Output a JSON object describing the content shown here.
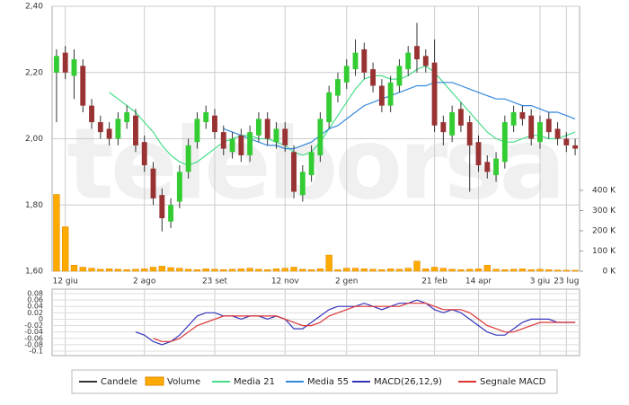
{
  "watermark": "teleborsa",
  "chart_data": [
    {
      "type": "candlestick",
      "name": "Candele",
      "up_color": "#33cc33",
      "down_color": "#993333",
      "wick_color": "#333333",
      "grid": true,
      "categories": [
        null,
        "12 giu",
        null,
        null,
        null,
        null,
        null,
        null,
        null,
        null,
        "2 ago",
        null,
        null,
        null,
        null,
        null,
        null,
        null,
        "23 set",
        null,
        null,
        null,
        null,
        null,
        null,
        null,
        "12 nov",
        null,
        null,
        null,
        null,
        null,
        null,
        "2 gen",
        null,
        null,
        null,
        null,
        null,
        null,
        null,
        null,
        null,
        "21 feb",
        null,
        null,
        null,
        null,
        "14 apr",
        null,
        null,
        null,
        null,
        null,
        null,
        "3 giu",
        null,
        null,
        "23 lug",
        null
      ],
      "open": [
        2.2,
        2.26,
        2.19,
        2.22,
        2.1,
        2.05,
        2.03,
        2.0,
        2.05,
        2.07,
        1.99,
        1.91,
        1.83,
        1.75,
        1.81,
        1.9,
        1.99,
        2.05,
        2.07,
        2.02,
        1.96,
        2.01,
        1.95,
        2.01,
        2.06,
        1.99,
        2.03,
        1.96,
        1.83,
        1.89,
        1.95,
        2.05,
        2.13,
        2.17,
        2.21,
        2.27,
        2.21,
        2.16,
        2.1,
        2.16,
        2.21,
        2.28,
        2.25,
        2.23,
        2.05,
        2.01,
        2.09,
        2.05,
        1.99,
        1.93,
        1.89,
        1.93,
        2.04,
        2.08,
        2.07,
        1.99,
        2.06,
        2.03,
        2.0,
        1.98
      ],
      "high": [
        2.27,
        2.28,
        2.27,
        2.24,
        2.12,
        2.07,
        2.05,
        2.08,
        2.1,
        2.09,
        2.01,
        1.93,
        1.85,
        1.82,
        1.92,
        2.0,
        2.08,
        2.1,
        2.09,
        2.04,
        2.02,
        2.03,
        2.04,
        2.08,
        2.08,
        2.05,
        2.05,
        1.98,
        1.92,
        1.98,
        2.08,
        2.16,
        2.2,
        2.24,
        2.3,
        2.29,
        2.23,
        2.18,
        2.19,
        2.24,
        2.28,
        2.35,
        2.27,
        2.3,
        2.07,
        2.1,
        2.11,
        2.07,
        2.01,
        1.95,
        1.96,
        2.07,
        2.1,
        2.1,
        2.09,
        2.07,
        2.08,
        2.05,
        2.02,
        2.0
      ],
      "low": [
        2.05,
        2.18,
        2.12,
        2.08,
        2.03,
        2.0,
        1.98,
        1.98,
        2.03,
        1.96,
        1.9,
        1.8,
        1.72,
        1.73,
        1.79,
        1.88,
        1.97,
        2.03,
        2.0,
        1.95,
        1.94,
        1.93,
        1.93,
        1.99,
        1.98,
        1.97,
        1.96,
        1.82,
        1.81,
        1.87,
        1.93,
        2.03,
        2.11,
        2.15,
        2.19,
        2.18,
        2.14,
        2.08,
        2.08,
        2.14,
        2.19,
        2.2,
        2.2,
        2.02,
        1.98,
        1.99,
        2.02,
        1.84,
        1.9,
        1.88,
        1.87,
        1.91,
        2.02,
        2.04,
        1.98,
        1.97,
        2.0,
        1.98,
        1.96,
        1.95
      ],
      "close": [
        2.25,
        2.2,
        2.24,
        2.1,
        2.05,
        2.02,
        2.0,
        2.06,
        2.08,
        1.98,
        1.92,
        1.82,
        1.76,
        1.8,
        1.9,
        1.98,
        2.06,
        2.08,
        2.02,
        1.97,
        2.0,
        1.95,
        2.02,
        2.06,
        2.0,
        2.03,
        1.98,
        1.84,
        1.9,
        1.96,
        2.06,
        2.14,
        2.18,
        2.22,
        2.26,
        2.2,
        2.16,
        2.1,
        2.17,
        2.22,
        2.26,
        2.24,
        2.22,
        2.04,
        2.02,
        2.08,
        2.04,
        1.98,
        1.92,
        1.9,
        1.94,
        2.05,
        2.08,
        2.06,
        2.0,
        2.05,
        2.02,
        2.0,
        1.98,
        1.97
      ],
      "ylim": [
        1.6,
        2.4
      ],
      "yticks": [
        {
          "value": 1.6,
          "label": "1,60"
        },
        {
          "value": 1.8,
          "label": "1,80"
        },
        {
          "value": 2.0,
          "label": "2,00"
        },
        {
          "value": 2.2,
          "label": "2,20"
        },
        {
          "value": 2.4,
          "label": "2,40"
        }
      ],
      "volume": {
        "name": "Volume",
        "color": "#ffaa00",
        "axis": "y2",
        "values": [
          380000,
          220000,
          30000,
          20000,
          15000,
          10000,
          12000,
          10000,
          8000,
          10000,
          12000,
          20000,
          25000,
          18000,
          15000,
          10000,
          8000,
          12000,
          10000,
          8000,
          10000,
          12000,
          15000,
          10000,
          8000,
          12000,
          15000,
          20000,
          10000,
          8000,
          12000,
          80000,
          8000,
          15000,
          15000,
          12000,
          10000,
          8000,
          12000,
          10000,
          15000,
          50000,
          12000,
          20000,
          15000,
          10000,
          8000,
          10000,
          12000,
          30000,
          10000,
          8000,
          10000,
          12000,
          8000,
          10000,
          8000,
          6000,
          5000,
          5000
        ]
      },
      "y2lim": [
        0,
        400000
      ],
      "y2ticks": [
        {
          "value": 0,
          "label": "0 K"
        },
        {
          "value": 100000,
          "label": "100 K"
        },
        {
          "value": 200000,
          "label": "200 K"
        },
        {
          "value": 300000,
          "label": "300 K"
        },
        {
          "value": 400000,
          "label": "400 K"
        }
      ],
      "series": [
        {
          "name": "Media 21",
          "color": "#44dd88",
          "values": [
            null,
            null,
            null,
            null,
            null,
            null,
            2.14,
            2.12,
            2.1,
            2.08,
            2.05,
            2.02,
            1.98,
            1.95,
            1.93,
            1.92,
            1.93,
            1.95,
            1.97,
            1.99,
            2.0,
            2.01,
            2.01,
            2.0,
            2.0,
            1.99,
            1.98,
            1.96,
            1.95,
            1.96,
            1.99,
            2.03,
            2.07,
            2.11,
            2.15,
            2.18,
            2.19,
            2.19,
            2.18,
            2.18,
            2.19,
            2.21,
            2.22,
            2.2,
            2.17,
            2.14,
            2.11,
            2.08,
            2.05,
            2.02,
            2.0,
            1.99,
            1.99,
            2.0,
            2.01,
            2.01,
            2.0,
            2.0,
            2.01,
            2.02
          ]
        },
        {
          "name": "Media 55",
          "color": "#3388dd",
          "values": [
            null,
            null,
            null,
            null,
            null,
            null,
            null,
            null,
            null,
            null,
            null,
            null,
            null,
            null,
            null,
            null,
            null,
            null,
            null,
            2.03,
            2.02,
            2.01,
            2.0,
            1.99,
            1.98,
            1.98,
            1.97,
            1.97,
            1.98,
            1.99,
            2.01,
            2.03,
            2.04,
            2.06,
            2.08,
            2.1,
            2.11,
            2.12,
            2.13,
            2.14,
            2.15,
            2.16,
            2.16,
            2.17,
            2.17,
            2.17,
            2.16,
            2.15,
            2.14,
            2.13,
            2.12,
            2.12,
            2.11,
            2.1,
            2.1,
            2.09,
            2.08,
            2.08,
            2.07,
            2.06
          ]
        }
      ]
    },
    {
      "type": "line",
      "grid": true,
      "ylim": [
        -0.1,
        0.08
      ],
      "yticks": [
        -0.1,
        -0.08,
        -0.06,
        -0.04,
        -0.02,
        0,
        0.02,
        0.04,
        0.06,
        0.08
      ],
      "series": [
        {
          "name": "MACD(26,12,9)",
          "color": "#3333bb",
          "values": [
            null,
            null,
            null,
            null,
            null,
            null,
            null,
            null,
            null,
            -0.04,
            -0.05,
            -0.07,
            -0.08,
            -0.07,
            -0.05,
            -0.02,
            0.01,
            0.02,
            0.02,
            0.01,
            0.01,
            0,
            0.01,
            0.01,
            0,
            0.01,
            0,
            -0.03,
            -0.03,
            -0.01,
            0.01,
            0.03,
            0.04,
            0.04,
            0.04,
            0.05,
            0.04,
            0.03,
            0.04,
            0.05,
            0.05,
            0.06,
            0.05,
            0.03,
            0.02,
            0.03,
            0.02,
            0,
            -0.02,
            -0.04,
            -0.05,
            -0.05,
            -0.03,
            -0.01,
            0,
            0,
            0,
            -0.01,
            -0.01,
            -0.01
          ]
        },
        {
          "name": "Segnale MACD",
          "color": "#dd3333",
          "values": [
            null,
            null,
            null,
            null,
            null,
            null,
            null,
            null,
            null,
            null,
            null,
            -0.06,
            -0.07,
            -0.07,
            -0.06,
            -0.04,
            -0.02,
            -0.01,
            0,
            0.01,
            0.01,
            0.01,
            0.01,
            0.01,
            0.01,
            0.01,
            0,
            -0.01,
            -0.02,
            -0.02,
            -0.01,
            0.01,
            0.02,
            0.03,
            0.04,
            0.04,
            0.04,
            0.04,
            0.04,
            0.04,
            0.05,
            0.05,
            0.05,
            0.04,
            0.03,
            0.03,
            0.03,
            0.02,
            0,
            -0.02,
            -0.03,
            -0.04,
            -0.04,
            -0.03,
            -0.02,
            -0.01,
            -0.01,
            -0.01,
            -0.01,
            -0.01
          ]
        }
      ]
    }
  ]
}
